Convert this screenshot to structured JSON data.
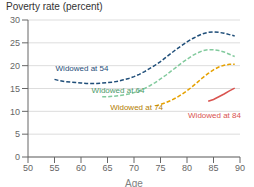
{
  "chart_data": {
    "type": "line",
    "title": "Poverty rate (percent)",
    "xlabel": "Age",
    "xlim": [
      50,
      90
    ],
    "ylim": [
      0,
      30
    ],
    "xticks": [
      50,
      55,
      60,
      65,
      70,
      75,
      80,
      85,
      90
    ],
    "yticks": [
      0,
      5,
      10,
      15,
      20,
      25,
      30
    ],
    "grid": true,
    "series": [
      {
        "name": "Widowed at 54",
        "color": "#1f4e79",
        "line_style": "dashed",
        "x": [
          55,
          56,
          57,
          58,
          59,
          60,
          61,
          62,
          63,
          64,
          65,
          66,
          67,
          68,
          69,
          70,
          71,
          72,
          73,
          74,
          75,
          76,
          77,
          78,
          79,
          80,
          81,
          82,
          83,
          84,
          85,
          86,
          87,
          88,
          89
        ],
        "values": [
          17.0,
          16.7,
          16.5,
          16.4,
          16.3,
          16.2,
          16.1,
          16.1,
          16.1,
          16.2,
          16.3,
          16.4,
          16.6,
          16.9,
          17.2,
          17.6,
          18.1,
          18.7,
          19.4,
          20.1,
          20.9,
          21.8,
          22.7,
          23.6,
          24.4,
          25.2,
          25.9,
          26.5,
          27.0,
          27.3,
          27.4,
          27.3,
          27.1,
          26.8,
          26.5
        ]
      },
      {
        "name": "Widowed at 64",
        "color": "#82ca9d",
        "line_style": "dashed",
        "x": [
          64,
          65,
          66,
          67,
          68,
          69,
          70,
          71,
          72,
          73,
          74,
          75,
          76,
          77,
          78,
          79,
          80,
          81,
          82,
          83,
          84,
          85,
          86,
          87,
          88,
          89
        ],
        "values": [
          13.2,
          13.2,
          13.3,
          13.4,
          13.6,
          13.8,
          14.1,
          14.5,
          15.0,
          15.6,
          16.3,
          17.1,
          17.9,
          18.8,
          19.7,
          20.6,
          21.4,
          22.2,
          22.8,
          23.3,
          23.5,
          23.5,
          23.3,
          23.0,
          22.5,
          22.0
        ]
      },
      {
        "name": "Widowed at 74",
        "color": "#e6a100",
        "line_style": "dashed",
        "x": [
          74,
          75,
          76,
          77,
          78,
          79,
          80,
          81,
          82,
          83,
          84,
          85,
          86,
          87,
          88,
          89
        ],
        "values": [
          11.2,
          11.5,
          11.9,
          12.4,
          13.0,
          13.7,
          14.5,
          15.4,
          16.4,
          17.4,
          18.3,
          19.1,
          19.7,
          20.1,
          20.3,
          20.3
        ]
      },
      {
        "name": "Widowed at 84",
        "color": "#d9534f",
        "line_style": "solid",
        "x": [
          84,
          85,
          86,
          87,
          88,
          89
        ],
        "values": [
          12.2,
          12.6,
          13.2,
          13.8,
          14.5,
          15.1
        ]
      }
    ],
    "annotations": [
      {
        "text": "Widowed at 54",
        "x": 55.2,
        "y": 19.5,
        "color": "#1f4e79"
      },
      {
        "text": "Widowed at 64",
        "x": 62.0,
        "y": 14.7,
        "color": "#4c9a6a"
      },
      {
        "text": "Widowed at 74",
        "x": 65.5,
        "y": 11.0,
        "color": "#b37d00"
      },
      {
        "text": "Widowed at 84",
        "x": 80.2,
        "y": 9.2,
        "color": "#d9534f"
      }
    ]
  }
}
